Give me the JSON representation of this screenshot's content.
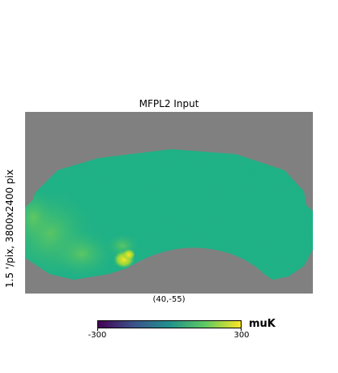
{
  "title": "MFPL2 Input",
  "y_axis_label": "1.5 '/pix,   3800x2400 pix",
  "center_label": "(40,-55)",
  "colorbar": {
    "min_label": "-300",
    "max_label": "300",
    "unit": "muK",
    "colormap": "viridis",
    "stops": [
      "#440154",
      "#3b528b",
      "#21918c",
      "#5ec962",
      "#fde725"
    ]
  },
  "colors": {
    "masked_background": "#808080",
    "map_dominant": "#22a786"
  }
}
